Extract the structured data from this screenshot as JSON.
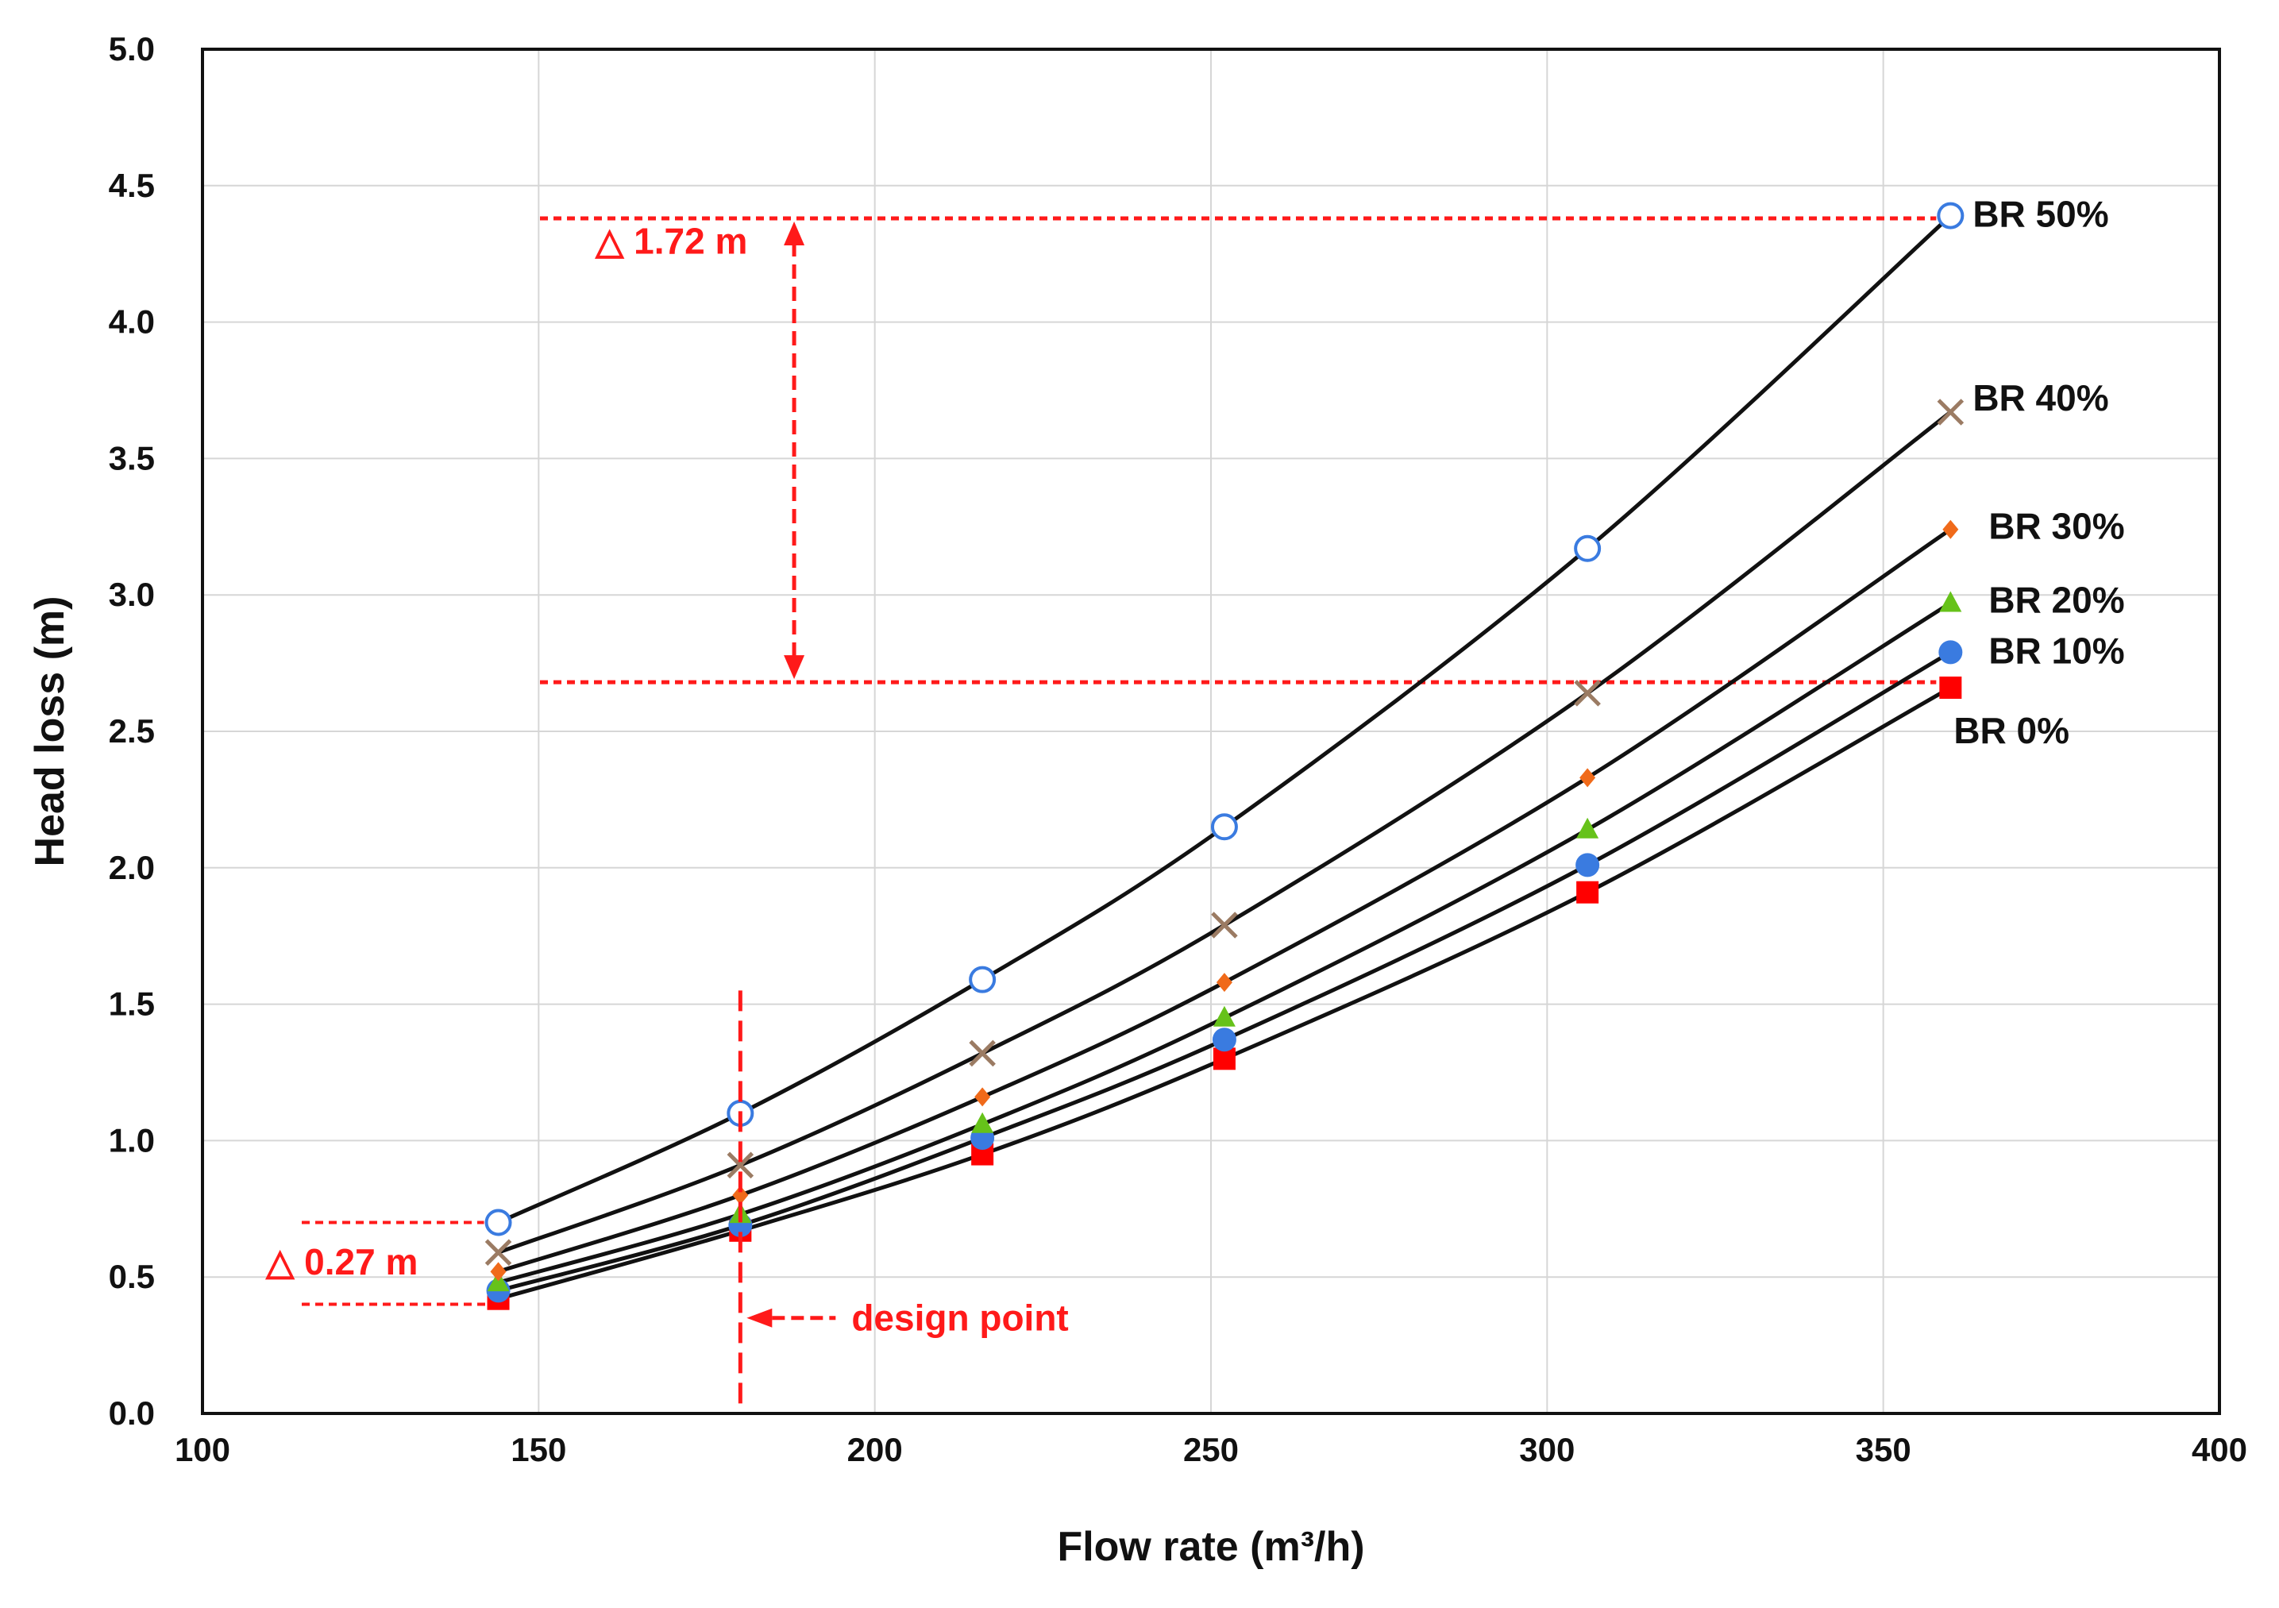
{
  "chart_data": {
    "type": "line",
    "title": "",
    "xlabel": "Flow rate (m³/h)",
    "ylabel": "Head loss (m)",
    "xlim": [
      100,
      400
    ],
    "ylim": [
      0,
      5
    ],
    "x_ticks": [
      "100",
      "150",
      "200",
      "250",
      "300",
      "350",
      "400"
    ],
    "y_ticks": [
      "0.0",
      "0.5",
      "1.0",
      "1.5",
      "2.0",
      "2.5",
      "3.0",
      "3.5",
      "4.0",
      "4.5",
      "5.0"
    ],
    "grid": true,
    "legend": "inline labels at line ends",
    "series": [
      {
        "name": "BR 0%",
        "marker": "square",
        "color": "#ff0000",
        "x": [
          144,
          180,
          216,
          252,
          306,
          360
        ],
        "values": [
          0.42,
          0.67,
          0.95,
          1.3,
          1.91,
          2.66
        ]
      },
      {
        "name": "BR 10%",
        "marker": "circle",
        "color": "#3a7be0",
        "x": [
          144,
          180,
          216,
          252,
          306,
          360
        ],
        "values": [
          0.45,
          0.69,
          1.01,
          1.37,
          2.01,
          2.79
        ]
      },
      {
        "name": "BR 20%",
        "marker": "triangle",
        "color": "#66c21a",
        "x": [
          144,
          180,
          216,
          252,
          306,
          360
        ],
        "values": [
          0.48,
          0.73,
          1.06,
          1.45,
          2.14,
          2.97
        ]
      },
      {
        "name": "BR 30%",
        "marker": "diamond",
        "color": "#f06a1a",
        "x": [
          144,
          180,
          216,
          252,
          306,
          360
        ],
        "values": [
          0.52,
          0.8,
          1.16,
          1.58,
          2.33,
          3.24
        ]
      },
      {
        "name": "BR 40%",
        "marker": "x",
        "color": "#9b7b63",
        "x": [
          144,
          180,
          216,
          252,
          306,
          360
        ],
        "values": [
          0.59,
          0.91,
          1.32,
          1.79,
          2.64,
          3.67
        ]
      },
      {
        "name": "BR 50%",
        "marker": "open-circle",
        "color": "#3a7be0",
        "x": [
          144,
          180,
          216,
          252,
          306,
          360
        ],
        "values": [
          0.7,
          1.1,
          1.59,
          2.15,
          3.17,
          4.39
        ]
      }
    ],
    "annotations": {
      "delta_high": {
        "label": "△ 1.72 m",
        "from": 2.68,
        "to": 4.38,
        "x": 188
      },
      "delta_low": {
        "label": "△ 0.27 m",
        "from": 0.4,
        "to": 0.7,
        "x": 115
      },
      "design_point": {
        "label": "design point",
        "x": 180,
        "line_top": 1.55
      },
      "color": "#ff1a1a"
    }
  }
}
